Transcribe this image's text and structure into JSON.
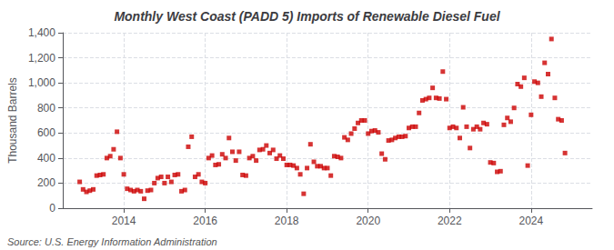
{
  "chart_data": {
    "type": "scatter",
    "title": "Monthly West Coast (PADD 5) Imports of Renewable Diesel Fuel",
    "ylabel": "Thousand Barrels",
    "source": "Source: U.S. Energy Information Administration",
    "color": "#cc0000",
    "marker": "square",
    "grid": true,
    "xlim": [
      2012.5,
      2025.5
    ],
    "xticks": [
      2014,
      2016,
      2018,
      2020,
      2022,
      2024
    ],
    "ylim": [
      0,
      1400
    ],
    "yticks": [
      0,
      200,
      400,
      600,
      800,
      {
        "value": 1000,
        "label": "1,000"
      },
      {
        "value": 1200,
        "label": "1,200"
      },
      {
        "value": 1400,
        "label": "1,400"
      }
    ],
    "x": [
      2012.917,
      2013.0,
      2013.083,
      2013.167,
      2013.25,
      2013.333,
      2013.417,
      2013.5,
      2013.583,
      2013.667,
      2013.75,
      2013.833,
      2013.917,
      2014.0,
      2014.083,
      2014.167,
      2014.25,
      2014.333,
      2014.417,
      2014.5,
      2014.583,
      2014.667,
      2014.75,
      2014.833,
      2014.917,
      2015.0,
      2015.083,
      2015.167,
      2015.25,
      2015.333,
      2015.417,
      2015.5,
      2015.583,
      2015.667,
      2015.75,
      2015.833,
      2015.917,
      2016.0,
      2016.083,
      2016.167,
      2016.25,
      2016.333,
      2016.417,
      2016.5,
      2016.583,
      2016.667,
      2016.75,
      2016.833,
      2016.917,
      2017.0,
      2017.083,
      2017.167,
      2017.25,
      2017.333,
      2017.417,
      2017.5,
      2017.583,
      2017.667,
      2017.75,
      2017.833,
      2017.917,
      2018.0,
      2018.083,
      2018.167,
      2018.25,
      2018.333,
      2018.417,
      2018.5,
      2018.583,
      2018.667,
      2018.75,
      2018.833,
      2018.917,
      2019.0,
      2019.083,
      2019.167,
      2019.25,
      2019.333,
      2019.417,
      2019.5,
      2019.583,
      2019.667,
      2019.75,
      2019.833,
      2019.917,
      2020.0,
      2020.083,
      2020.167,
      2020.25,
      2020.333,
      2020.417,
      2020.5,
      2020.583,
      2020.667,
      2020.75,
      2020.833,
      2020.917,
      2021.0,
      2021.083,
      2021.167,
      2021.25,
      2021.333,
      2021.417,
      2021.5,
      2021.583,
      2021.667,
      2021.75,
      2021.833,
      2021.917,
      2022.0,
      2022.083,
      2022.167,
      2022.25,
      2022.333,
      2022.417,
      2022.5,
      2022.583,
      2022.667,
      2022.75,
      2022.833,
      2022.917,
      2023.0,
      2023.083,
      2023.167,
      2023.25,
      2023.333,
      2023.417,
      2023.5,
      2023.583,
      2023.667,
      2023.75,
      2023.833,
      2023.917,
      2024.0,
      2024.083,
      2024.167,
      2024.25,
      2024.333,
      2024.417,
      2024.5,
      2024.583,
      2024.667,
      2024.75,
      2024.833
    ],
    "values": [
      210,
      150,
      130,
      140,
      150,
      260,
      265,
      270,
      400,
      415,
      470,
      610,
      400,
      270,
      155,
      145,
      135,
      145,
      135,
      75,
      140,
      145,
      200,
      240,
      250,
      200,
      250,
      210,
      265,
      270,
      135,
      145,
      490,
      570,
      250,
      270,
      210,
      200,
      400,
      420,
      345,
      350,
      430,
      400,
      560,
      450,
      380,
      450,
      265,
      260,
      400,
      415,
      380,
      465,
      470,
      500,
      440,
      465,
      395,
      420,
      395,
      345,
      345,
      340,
      320,
      270,
      115,
      320,
      510,
      370,
      335,
      335,
      320,
      320,
      260,
      415,
      410,
      400,
      565,
      545,
      595,
      635,
      680,
      700,
      700,
      595,
      615,
      620,
      605,
      435,
      390,
      540,
      545,
      560,
      570,
      570,
      575,
      640,
      650,
      650,
      760,
      860,
      870,
      880,
      960,
      880,
      875,
      1090,
      870,
      640,
      650,
      640,
      560,
      805,
      650,
      480,
      630,
      650,
      630,
      680,
      670,
      365,
      360,
      290,
      295,
      665,
      720,
      690,
      800,
      990,
      970,
      1040,
      340,
      745,
      1010,
      1000,
      890,
      1160,
      1070,
      1350,
      880,
      710,
      700,
      440
    ]
  }
}
